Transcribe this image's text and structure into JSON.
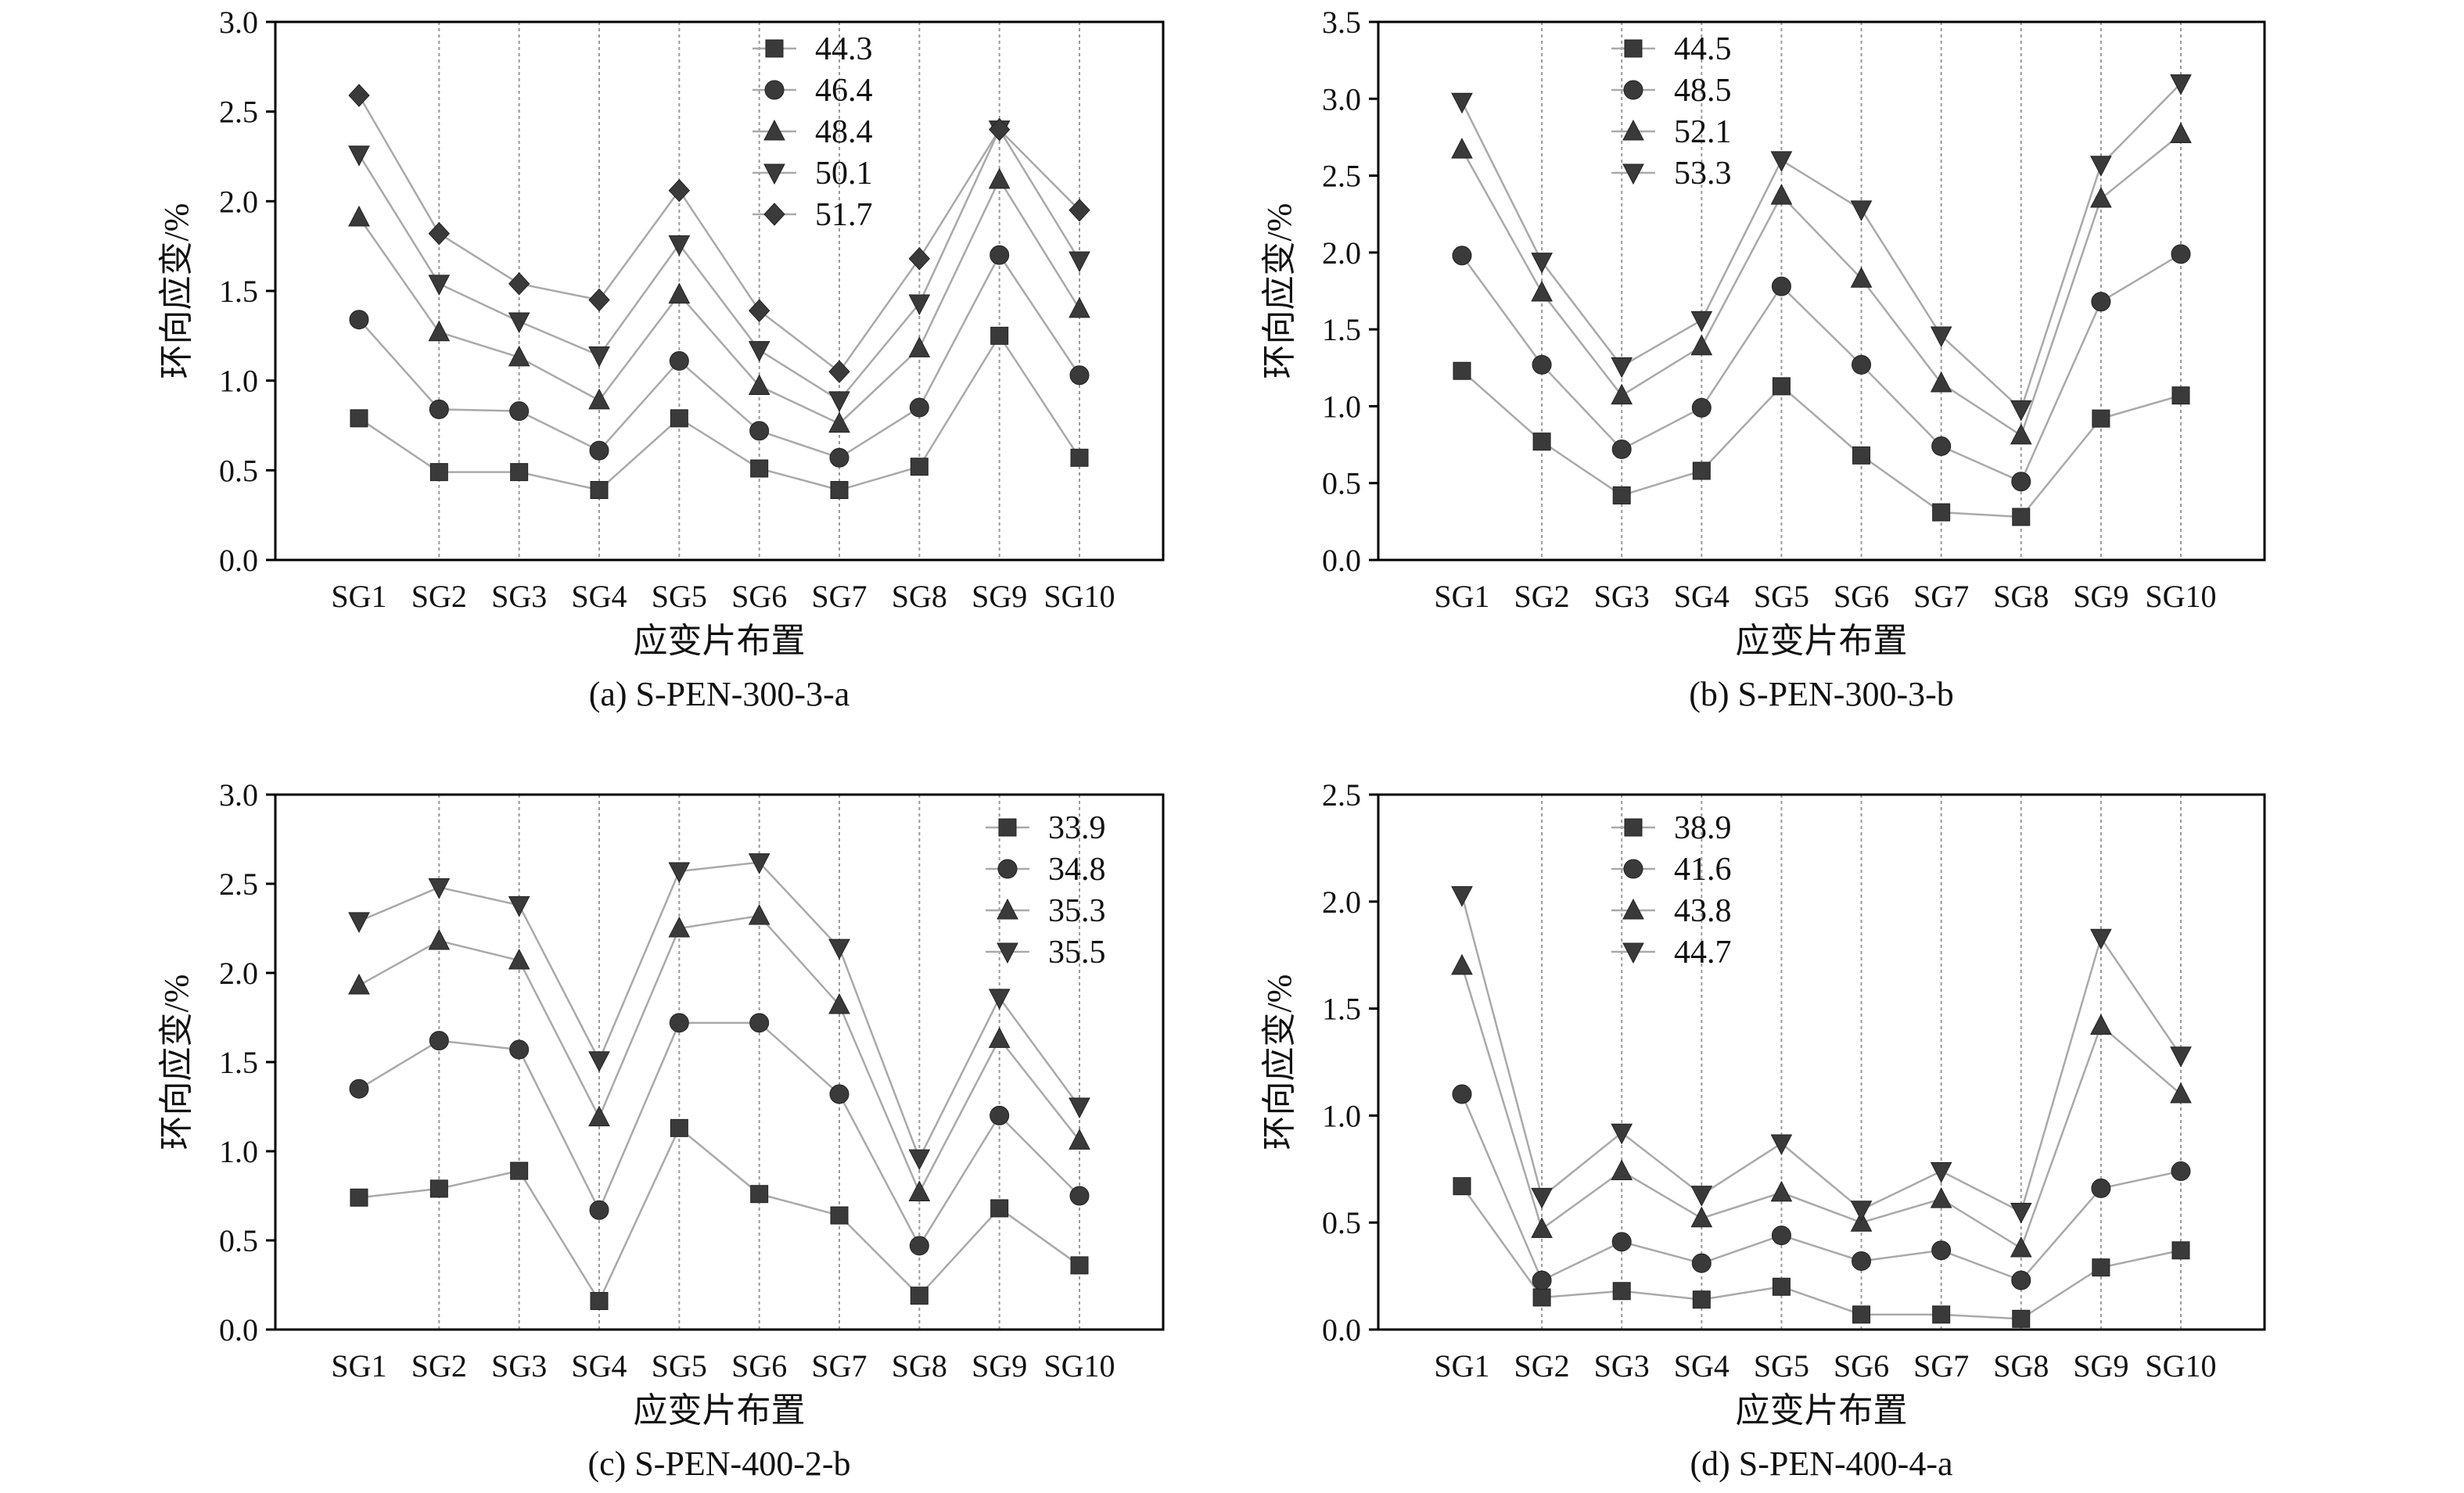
{
  "chart_data": [
    {
      "type": "line",
      "caption": "(a) S-PEN-300-3-a",
      "xlabel": "应变片布置",
      "ylabel": "环向应变/%",
      "categories": [
        "SG1",
        "SG2",
        "SG3",
        "SG4",
        "SG5",
        "SG6",
        "SG7",
        "SG8",
        "SG9",
        "SG10"
      ],
      "ylim": [
        0,
        3.0
      ],
      "yticks": [
        "0.0",
        "0.5",
        "1.0",
        "1.5",
        "2.0",
        "2.5",
        "3.0"
      ],
      "legend_position": "top-center",
      "series": [
        {
          "name": "44.3",
          "marker": "square",
          "values": [
            0.79,
            0.49,
            0.49,
            0.39,
            0.79,
            0.51,
            0.39,
            0.52,
            1.25,
            0.57
          ]
        },
        {
          "name": "46.4",
          "marker": "circle",
          "values": [
            1.34,
            0.84,
            0.83,
            0.61,
            1.11,
            0.72,
            0.57,
            0.85,
            1.7,
            1.03
          ]
        },
        {
          "name": "48.4",
          "marker": "triangle-up",
          "values": [
            1.91,
            1.27,
            1.13,
            0.89,
            1.48,
            0.97,
            0.76,
            1.18,
            2.12,
            1.4
          ]
        },
        {
          "name": "50.1",
          "marker": "triangle-down",
          "values": [
            2.26,
            1.54,
            1.33,
            1.14,
            1.76,
            1.17,
            0.89,
            1.43,
            2.4,
            1.67
          ]
        },
        {
          "name": "51.7",
          "marker": "diamond",
          "values": [
            2.59,
            1.82,
            1.54,
            1.45,
            2.06,
            1.39,
            1.05,
            1.68,
            2.4,
            1.95
          ]
        }
      ]
    },
    {
      "type": "line",
      "caption": "(b) S-PEN-300-3-b",
      "xlabel": "应变片布置",
      "ylabel": "环向应变/%",
      "categories": [
        "SG1",
        "SG2",
        "SG3",
        "SG4",
        "SG5",
        "SG6",
        "SG7",
        "SG8",
        "SG9",
        "SG10"
      ],
      "ylim": [
        0,
        3.5
      ],
      "yticks": [
        "0.0",
        "0.5",
        "1.0",
        "1.5",
        "2.0",
        "2.5",
        "3.0",
        "3.5"
      ],
      "legend_position": "top-left",
      "series": [
        {
          "name": "44.5",
          "marker": "square",
          "values": [
            1.23,
            0.77,
            0.42,
            0.58,
            1.13,
            0.68,
            0.31,
            0.28,
            0.92,
            1.07
          ]
        },
        {
          "name": "48.5",
          "marker": "circle",
          "values": [
            1.98,
            1.27,
            0.72,
            0.99,
            1.78,
            1.27,
            0.74,
            0.51,
            1.68,
            1.99
          ]
        },
        {
          "name": "52.1",
          "marker": "triangle-up",
          "values": [
            2.67,
            1.74,
            1.07,
            1.39,
            2.37,
            1.83,
            1.15,
            0.81,
            2.35,
            2.77
          ]
        },
        {
          "name": "53.3",
          "marker": "triangle-down",
          "values": [
            2.98,
            1.94,
            1.26,
            1.56,
            2.6,
            2.28,
            1.46,
            0.98,
            2.57,
            3.1
          ]
        }
      ]
    },
    {
      "type": "line",
      "caption": "(c) S-PEN-400-2-b",
      "xlabel": "应变片布置",
      "ylabel": "环向应变/%",
      "categories": [
        "SG1",
        "SG2",
        "SG3",
        "SG4",
        "SG5",
        "SG6",
        "SG7",
        "SG8",
        "SG9",
        "SG10"
      ],
      "ylim": [
        0,
        3.0
      ],
      "yticks": [
        "0.0",
        "0.5",
        "1.0",
        "1.5",
        "2.0",
        "2.5",
        "3.0"
      ],
      "legend_position": "top-right",
      "series": [
        {
          "name": "33.9",
          "marker": "square",
          "values": [
            0.74,
            0.79,
            0.89,
            0.16,
            1.13,
            0.76,
            0.64,
            0.19,
            0.68,
            0.36
          ]
        },
        {
          "name": "34.8",
          "marker": "circle",
          "values": [
            1.35,
            1.62,
            1.57,
            0.67,
            1.72,
            1.72,
            1.32,
            0.47,
            1.2,
            0.75
          ]
        },
        {
          "name": "35.3",
          "marker": "triangle-up",
          "values": [
            1.93,
            2.18,
            2.07,
            1.19,
            2.25,
            2.32,
            1.82,
            0.77,
            1.63,
            1.06
          ]
        },
        {
          "name": "35.5",
          "marker": "triangle-down",
          "values": [
            2.29,
            2.48,
            2.38,
            1.51,
            2.57,
            2.62,
            2.14,
            0.96,
            1.86,
            1.25
          ]
        }
      ]
    },
    {
      "type": "line",
      "caption": "(d) S-PEN-400-4-a",
      "xlabel": "应变片布置",
      "ylabel": "环向应变/%",
      "categories": [
        "SG1",
        "SG2",
        "SG3",
        "SG4",
        "SG5",
        "SG6",
        "SG7",
        "SG8",
        "SG9",
        "SG10"
      ],
      "ylim": [
        0,
        2.5
      ],
      "yticks": [
        "0.0",
        "0.5",
        "1.0",
        "1.5",
        "2.0",
        "2.5"
      ],
      "legend_position": "top-left",
      "series": [
        {
          "name": "38.9",
          "marker": "square",
          "values": [
            0.67,
            0.15,
            0.18,
            0.14,
            0.2,
            0.07,
            0.07,
            0.05,
            0.29,
            0.37
          ]
        },
        {
          "name": "41.6",
          "marker": "circle",
          "values": [
            1.1,
            0.23,
            0.41,
            0.31,
            0.44,
            0.32,
            0.37,
            0.23,
            0.66,
            0.74
          ]
        },
        {
          "name": "43.8",
          "marker": "triangle-up",
          "values": [
            1.7,
            0.47,
            0.74,
            0.52,
            0.64,
            0.5,
            0.61,
            0.38,
            1.42,
            1.1
          ]
        },
        {
          "name": "44.7",
          "marker": "triangle-down",
          "values": [
            2.03,
            0.62,
            0.92,
            0.63,
            0.87,
            0.56,
            0.74,
            0.55,
            1.83,
            1.28
          ]
        }
      ]
    }
  ]
}
